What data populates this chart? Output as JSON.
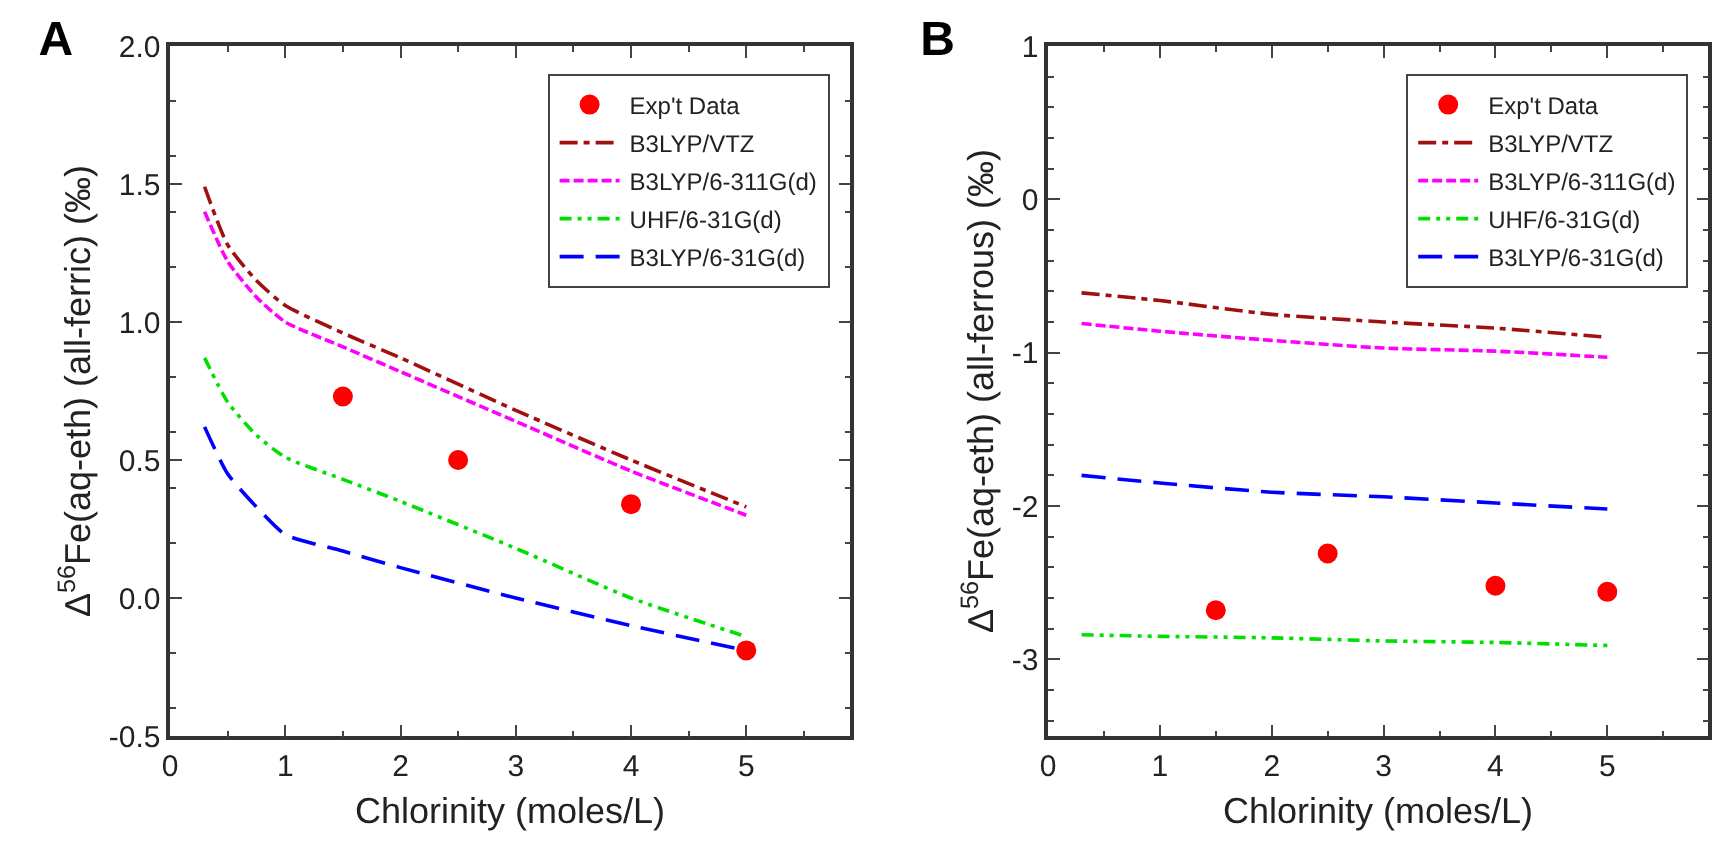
{
  "chart_data": [
    {
      "type": "line",
      "title": "A",
      "xlabel": "Chlorinity (moles/L)",
      "ylabel": "Δ$^{56}$Fe(aq-eth) (all-ferric) (‰)",
      "xlim": [
        0,
        5.9
      ],
      "xticks": [
        0,
        1,
        2,
        3,
        4,
        5
      ],
      "ylim": [
        -0.5,
        2.0
      ],
      "yticks": [
        {
          "value": -0.5,
          "label": "-0.5"
        },
        {
          "value": 0,
          "label": "0.0"
        },
        {
          "value": 0.5,
          "label": "0.5"
        },
        {
          "value": 1,
          "label": "1.0"
        },
        {
          "value": 1.5,
          "label": "1.5"
        },
        {
          "value": 2,
          "label": "2.0"
        }
      ],
      "grid": false,
      "legend": "top right",
      "series": [
        {
          "name": "Exp't Data",
          "type": "scatter",
          "marker": "circle",
          "color": "#ff0000",
          "x": [
            1.5,
            2.5,
            4,
            5
          ],
          "values": [
            0.73,
            0.5,
            0.34,
            -0.19
          ]
        },
        {
          "name": "B3LYP/VTZ",
          "color": "#a01010",
          "line_style": "dashed",
          "x": [
            0.3,
            0.5,
            0.75,
            1,
            1.5,
            2,
            3,
            4,
            5
          ],
          "values": [
            1.49,
            1.28,
            1.15,
            1.06,
            0.96,
            0.87,
            0.68,
            0.5,
            0.33
          ]
        },
        {
          "name": "B3LYP/6-311G(d)",
          "color": "#ff00ff",
          "line_style": "dashed",
          "x": [
            0.3,
            0.5,
            0.75,
            1,
            1.5,
            2,
            3,
            4,
            5
          ],
          "values": [
            1.4,
            1.22,
            1.09,
            1.0,
            0.91,
            0.82,
            0.64,
            0.46,
            0.3
          ]
        },
        {
          "name": "UHF/6-31G(d)",
          "color": "#00e000",
          "line_style": "dashed",
          "x": [
            0.3,
            0.5,
            0.75,
            1,
            1.5,
            2,
            3,
            4,
            5
          ],
          "values": [
            0.87,
            0.71,
            0.59,
            0.51,
            0.43,
            0.35,
            0.18,
            0.0,
            -0.14
          ]
        },
        {
          "name": "B3LYP/6-31G(d)",
          "color": "#0000ff",
          "line_style": "dashed",
          "x": [
            0.3,
            0.5,
            0.75,
            1,
            1.5,
            2,
            3,
            4,
            5
          ],
          "values": [
            0.62,
            0.45,
            0.33,
            0.23,
            0.17,
            0.11,
            0.0,
            -0.1,
            -0.19
          ]
        }
      ]
    },
    {
      "type": "line",
      "title": "B",
      "xlabel": "Chlorinity (moles/L)",
      "ylabel": "Δ$^{56}$Fe(aq-eth) (all-ferrous) (‰)",
      "xlim": [
        0,
        5.9
      ],
      "xticks": [
        0,
        1,
        2,
        3,
        4,
        5
      ],
      "ylim": [
        -3.5,
        1
      ],
      "yticks": [
        -3,
        -2,
        -1,
        0,
        1
      ],
      "grid": false,
      "legend": "top right",
      "series": [
        {
          "name": "Exp't Data",
          "type": "scatter",
          "marker": "circle",
          "color": "#ff0000",
          "x": [
            1.5,
            2.5,
            4,
            5
          ],
          "values": [
            -2.68,
            -2.31,
            -2.52,
            -2.56
          ]
        },
        {
          "name": "B3LYP/VTZ",
          "color": "#a01010",
          "line_style": "dashed",
          "x": [
            0.3,
            1,
            2,
            3,
            4,
            5
          ],
          "values": [
            -0.61,
            -0.66,
            -0.75,
            -0.8,
            -0.84,
            -0.9
          ]
        },
        {
          "name": "B3LYP/6-311G(d)",
          "color": "#ff00ff",
          "line_style": "dashed",
          "x": [
            0.3,
            1,
            2,
            3,
            4,
            5
          ],
          "values": [
            -0.81,
            -0.86,
            -0.92,
            -0.97,
            -0.99,
            -1.03
          ]
        },
        {
          "name": "UHF/6-31G(d)",
          "color": "#00e000",
          "line_style": "dashed",
          "x": [
            0.3,
            1,
            2,
            3,
            4,
            5
          ],
          "values": [
            -2.84,
            -2.85,
            -2.86,
            -2.88,
            -2.89,
            -2.91
          ]
        },
        {
          "name": "B3LYP/6-31G(d)",
          "color": "#0000ff",
          "line_style": "dashed",
          "x": [
            0.3,
            1,
            2,
            3,
            4,
            5
          ],
          "values": [
            -1.8,
            -1.85,
            -1.91,
            -1.94,
            -1.98,
            -2.02
          ]
        }
      ]
    }
  ]
}
